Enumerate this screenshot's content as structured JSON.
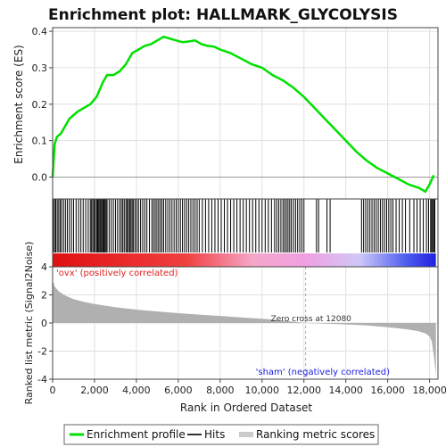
{
  "chart_data": {
    "type": "line",
    "title": "Enrichment plot: HALLMARK_GLYCOLYSIS",
    "xlabel": "Rank in Ordered Dataset",
    "ylabel_top": "Enrichment score (ES)",
    "ylabel_bottom": "Ranked list metric (Signal2Noise)",
    "xlim": [
      0,
      18400
    ],
    "es_ylim": [
      -0.06,
      0.41
    ],
    "metric_ylim": [
      -4,
      4
    ],
    "x_ticks": [
      0,
      2000,
      4000,
      6000,
      8000,
      10000,
      12000,
      14000,
      16000,
      18000
    ],
    "x_tick_labels": [
      "0",
      "2,000",
      "4,000",
      "6,000",
      "8,000",
      "10,000",
      "12,000",
      "14,000",
      "16,000",
      "18,000"
    ],
    "es_ticks": [
      0.0,
      0.1,
      0.2,
      0.3,
      0.4
    ],
    "es_tick_labels": [
      "0.0",
      "0.1",
      "0.2",
      "0.3",
      "0.4"
    ],
    "metric_ticks": [
      -4,
      -2,
      0,
      2,
      4
    ],
    "metric_tick_labels": [
      "-4",
      "-2",
      "0",
      "2",
      "4"
    ],
    "series": [
      {
        "name": "Enrichment profile",
        "color": "#00e000",
        "x": [
          0,
          100,
          200,
          400,
          600,
          800,
          1000,
          1200,
          1500,
          1800,
          2100,
          2400,
          2600,
          2900,
          3200,
          3500,
          3800,
          4100,
          4400,
          4700,
          5000,
          5300,
          5600,
          5900,
          6200,
          6500,
          6800,
          7100,
          7400,
          7700,
          8000,
          8500,
          9000,
          9500,
          10000,
          10500,
          11000,
          11500,
          12000,
          12500,
          13000,
          13500,
          14000,
          14500,
          15000,
          15500,
          16000,
          16500,
          17000,
          17500,
          17800,
          18000,
          18200
        ],
        "y": [
          0.0,
          0.09,
          0.11,
          0.12,
          0.14,
          0.16,
          0.17,
          0.18,
          0.19,
          0.2,
          0.22,
          0.26,
          0.28,
          0.28,
          0.29,
          0.31,
          0.34,
          0.35,
          0.36,
          0.365,
          0.375,
          0.385,
          0.38,
          0.375,
          0.37,
          0.372,
          0.375,
          0.365,
          0.36,
          0.358,
          0.35,
          0.34,
          0.325,
          0.31,
          0.3,
          0.28,
          0.265,
          0.245,
          0.22,
          0.19,
          0.16,
          0.13,
          0.1,
          0.07,
          0.045,
          0.025,
          0.01,
          -0.005,
          -0.02,
          -0.03,
          -0.04,
          -0.02,
          0.005
        ]
      }
    ],
    "hits": [
      30,
      90,
      150,
      220,
      290,
      360,
      430,
      520,
      610,
      700,
      800,
      900,
      1000,
      1120,
      1240,
      1350,
      1460,
      1580,
      1700,
      1800,
      1860,
      1920,
      1980,
      2040,
      2100,
      2150,
      2200,
      2250,
      2300,
      2350,
      2400,
      2450,
      2500,
      2550,
      2600,
      2700,
      2800,
      2900,
      3000,
      3100,
      3200,
      3280,
      3350,
      3420,
      3500,
      3560,
      3620,
      3680,
      3740,
      3800,
      3860,
      3940,
      4020,
      4100,
      4200,
      4300,
      4400,
      4500,
      4620,
      4740,
      4820,
      4900,
      4980,
      5060,
      5140,
      5220,
      5300,
      5400,
      5500,
      5600,
      5700,
      5800,
      5900,
      6000,
      6100,
      6200,
      6300,
      6400,
      6500,
      6600,
      6700,
      6800,
      6900,
      7000,
      7150,
      7300,
      7450,
      7600,
      7750,
      7900,
      8050,
      8200,
      8350,
      8500,
      8650,
      8800,
      8950,
      9100,
      9250,
      9400,
      9550,
      9700,
      9850,
      10000,
      10150,
      10300,
      10450,
      10600,
      10700,
      10800,
      10900,
      11000,
      11080,
      11160,
      11240,
      11320,
      11400,
      11500,
      11600,
      11700,
      11800,
      11900,
      12000,
      12600,
      12700,
      13100,
      13250,
      14750,
      14850,
      14950,
      15050,
      15150,
      15250,
      15350,
      15450,
      15550,
      15650,
      15750,
      15850,
      15950,
      16050,
      16150,
      16250,
      16400,
      16550,
      16700,
      16850,
      17050,
      17250,
      17400,
      17550,
      17700,
      17850,
      17950,
      18050,
      18100,
      18150,
      18200,
      18250
    ],
    "metric_profile": {
      "x": [
        0,
        100,
        300,
        600,
        1000,
        1500,
        2000,
        3000,
        4000,
        5000,
        6000,
        7000,
        8000,
        9000,
        10000,
        11000,
        12080,
        13000,
        14000,
        15000,
        16000,
        16500,
        17000,
        17500,
        17800,
        18000,
        18100,
        18200,
        18300
      ],
      "y": [
        3.0,
        2.6,
        2.25,
        1.95,
        1.7,
        1.5,
        1.35,
        1.12,
        0.95,
        0.82,
        0.7,
        0.6,
        0.5,
        0.4,
        0.3,
        0.17,
        0.0,
        -0.05,
        -0.1,
        -0.18,
        -0.3,
        -0.38,
        -0.47,
        -0.6,
        -0.75,
        -0.95,
        -1.3,
        -2.3,
        -3.7
      ]
    },
    "zero_cross_label": "Zero cross at 12080",
    "zero_cross_x": 12080,
    "pos_label": "'ovx' (positively correlated)",
    "neg_label": "'sham' (negatively correlated)",
    "legend": [
      "Enrichment profile",
      "Hits",
      "Ranking metric scores"
    ],
    "colors": {
      "profile": "#00e000",
      "hits": "#000000",
      "metric_fill": "#b0b0b0",
      "pos": "#e01010",
      "mid": "#f0a0e0",
      "neg": "#2020e0",
      "grid": "#e0e0e0"
    }
  }
}
